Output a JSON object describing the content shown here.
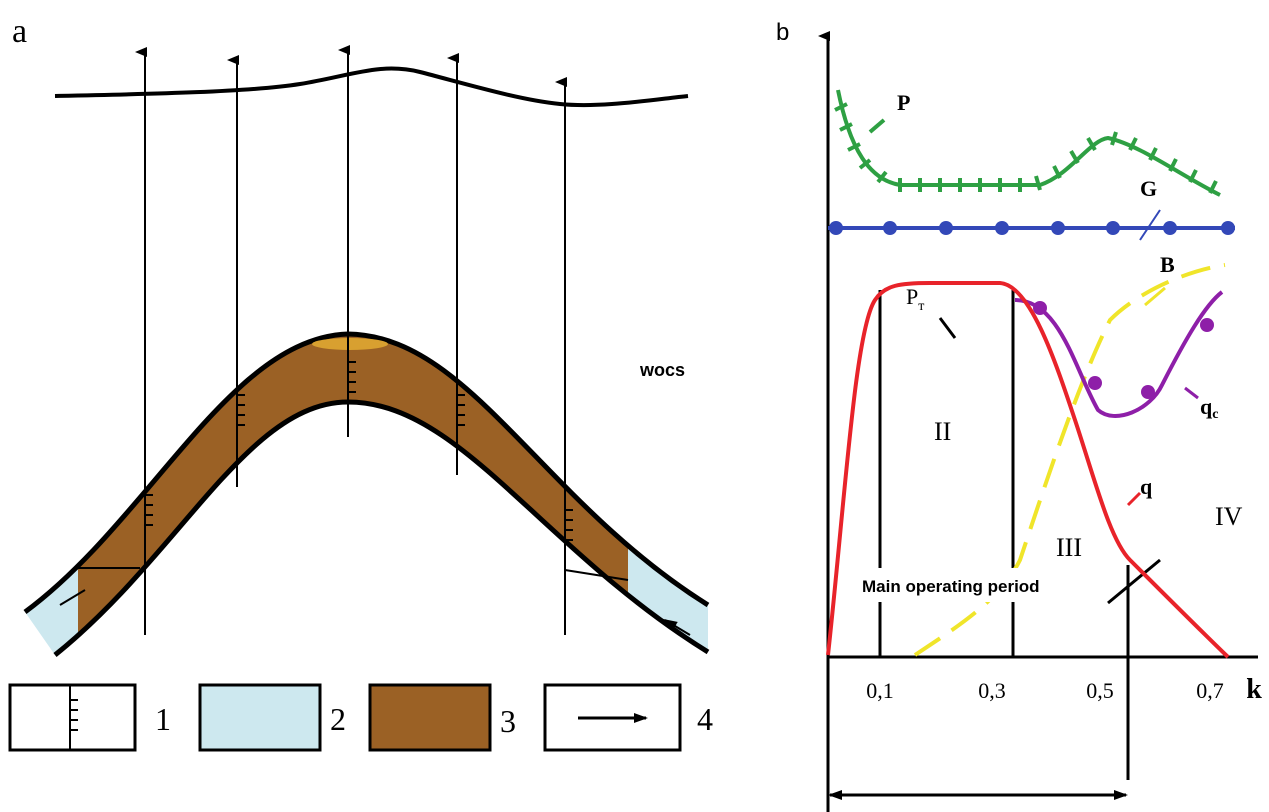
{
  "panel_a": {
    "label": "a",
    "annotation": "wocs",
    "legend": [
      "1",
      "2",
      "3",
      "4"
    ]
  },
  "panel_b": {
    "label": "b",
    "curve_labels": [
      {
        "text": "P"
      },
      {
        "text": "G"
      },
      {
        "text": "B"
      },
      {
        "text": "P",
        "sub": "т"
      },
      {
        "text": "q",
        "sub": "c"
      },
      {
        "text": "q"
      }
    ],
    "zones": [
      "II",
      "III",
      "IV"
    ],
    "period_label": "Main operating period",
    "x_ticks": [
      "0,1",
      "0,3",
      "0,5",
      "0,7"
    ],
    "x_label": "k"
  }
}
